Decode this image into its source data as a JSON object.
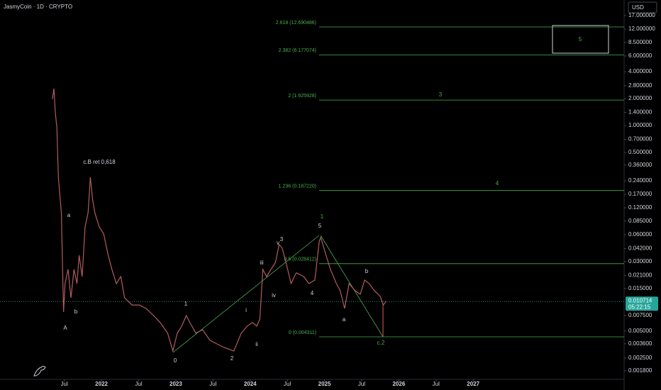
{
  "chart_data": {
    "type": "line",
    "title": "JasmyCoin · 1D · CRYPTO",
    "currency": "USD",
    "log_scale": true,
    "color": "#b35c5f",
    "xlim": [
      2020.635,
      2029.03
    ],
    "xticks": [
      {
        "value": 2021.5,
        "label": "Jul"
      },
      2022,
      {
        "value": 2022.5,
        "label": "Jul"
      },
      2023,
      {
        "value": 2023.5,
        "label": "Jul"
      },
      2024,
      {
        "value": 2024.5,
        "label": "Jul"
      },
      2025,
      {
        "value": 2025.5,
        "label": "Jul"
      },
      2026,
      {
        "value": 2026.5,
        "label": "Jul"
      },
      2027
    ],
    "ylim": [
      0.00144,
      25.4
    ],
    "yticks": [
      {
        "value": 17,
        "label": "17.000000"
      },
      {
        "value": 12,
        "label": "12.000000"
      },
      {
        "value": 8.5,
        "label": "8.500000"
      },
      {
        "value": 6,
        "label": "6.000000"
      },
      {
        "value": 4,
        "label": "4.000000"
      },
      {
        "value": 2.8,
        "label": "2.800000"
      },
      {
        "value": 2,
        "label": "2.000000"
      },
      {
        "value": 1.4,
        "label": "1.400000"
      },
      {
        "value": 1,
        "label": "1.000000"
      },
      {
        "value": 0.7,
        "label": "0.700000"
      },
      {
        "value": 0.5,
        "label": "0.500000"
      },
      {
        "value": 0.36,
        "label": "0.360000"
      },
      {
        "value": 0.24,
        "label": "0.240000"
      },
      {
        "value": 0.17,
        "label": "0.170000"
      },
      {
        "value": 0.12,
        "label": "0.120000"
      },
      {
        "value": 0.085,
        "label": "0.085000"
      },
      {
        "value": 0.06,
        "label": "0.060000"
      },
      {
        "value": 0.042,
        "label": "0.042000"
      },
      {
        "value": 0.03,
        "label": "0.030000"
      },
      {
        "value": 0.021,
        "label": "0.021000"
      },
      {
        "value": 0.015,
        "label": "0.015000"
      },
      {
        "value": 0.0075,
        "label": "0.007500"
      },
      {
        "value": 0.005,
        "label": "0.005000"
      },
      {
        "value": 0.0036,
        "label": "0.003600"
      },
      {
        "value": 0.0025,
        "label": "0.002500"
      },
      {
        "value": 0.0018,
        "label": "0.001800"
      }
    ],
    "x": [
      2021.34,
      2021.36,
      2021.38,
      2021.4,
      2021.42,
      2021.46,
      2021.49,
      2021.51,
      2021.55,
      2021.59,
      2021.63,
      2021.67,
      2021.7,
      2021.74,
      2021.78,
      2021.82,
      2021.85,
      2021.88,
      2021.91,
      2021.97,
      2022.03,
      2022.09,
      2022.14,
      2022.2,
      2022.26,
      2022.31,
      2022.41,
      2022.51,
      2022.6,
      2022.7,
      2022.79,
      2022.89,
      2022.96,
      2023.02,
      2023.08,
      2023.14,
      2023.19,
      2023.27,
      2023.36,
      2023.46,
      2023.55,
      2023.65,
      2023.78,
      2023.88,
      2023.96,
      2024.03,
      2024.09,
      2024.13,
      2024.17,
      2024.22,
      2024.28,
      2024.34,
      2024.39,
      2024.43,
      2024.47,
      2024.55,
      2024.62,
      2024.72,
      2024.79,
      2024.87,
      2024.93,
      2024.95,
      2025.02,
      2025.08,
      2025.16,
      2025.21,
      2025.27,
      2025.33,
      2025.41,
      2025.48,
      2025.54,
      2025.6,
      2025.67,
      2025.75,
      2025.79,
      2025.83
    ],
    "values": [
      1.97,
      2.59,
      1.37,
      0.947,
      0.264,
      0.106,
      0.0082,
      0.017,
      0.0245,
      0.0118,
      0.0245,
      0.017,
      0.0353,
      0.0204,
      0.0733,
      0.106,
      0.264,
      0.15,
      0.106,
      0.0733,
      0.0611,
      0.0353,
      0.0245,
      0.017,
      0.0204,
      0.0118,
      0.0098,
      0.0098,
      0.00896,
      0.00746,
      0.00622,
      0.00473,
      0.00299,
      0.00473,
      0.00568,
      0.00746,
      0.00622,
      0.00473,
      0.00518,
      0.00394,
      0.0036,
      0.00328,
      0.00299,
      0.00473,
      0.00568,
      0.00622,
      0.00568,
      0.00682,
      0.0245,
      0.0204,
      0.0245,
      0.0294,
      0.0465,
      0.0424,
      0.0322,
      0.017,
      0.0224,
      0.0204,
      0.017,
      0.0186,
      0.0509,
      0.0558,
      0.0353,
      0.0245,
      0.017,
      0.0142,
      0.00896,
      0.017,
      0.0142,
      0.0129,
      0.0186,
      0.017,
      0.0142,
      0.0122,
      0.0098,
      0.0108
    ],
    "current_price": 0.010714,
    "countdown": "05:22:15",
    "fib_levels": [
      {
        "label": "2.618 (12.690486)",
        "value": 12.690486
      },
      {
        "label": "2.382 (6.177074)",
        "value": 6.177074
      },
      {
        "label": "2 (1.925928)",
        "value": 1.925928
      },
      {
        "label": "1.236 (0.187220)",
        "value": 0.18722
      },
      {
        "label": "0.5 (0.028412)",
        "value": 0.028412
      },
      {
        "label": "0 (0.004311)",
        "value": 0.004311
      }
    ],
    "fib_color": "#4caf50",
    "annotations": [
      {
        "text": "A",
        "color": "#d1d4dc"
      },
      {
        "text": "a",
        "color": "#d1d4dc"
      },
      {
        "text": "b",
        "color": "#d1d4dc"
      },
      {
        "text": "c.B ret 0,618",
        "color": "#d1d4dc"
      },
      {
        "text": "1",
        "color": "#d1d4dc"
      },
      {
        "text": "0",
        "color": "#d1d4dc"
      },
      {
        "text": "2",
        "color": "#d1d4dc"
      },
      {
        "text": "i",
        "color": "#d1d4dc"
      },
      {
        "text": "ii",
        "color": "#d1d4dc"
      },
      {
        "text": "iii",
        "color": "#d1d4dc"
      },
      {
        "text": "iv",
        "color": "#d1d4dc"
      },
      {
        "text": "v",
        "color": "#d1d4dc"
      },
      {
        "text": "3",
        "color": "#d1d4dc"
      },
      {
        "text": "4",
        "color": "#d1d4dc"
      },
      {
        "text": "5",
        "color": "#d1d4dc"
      },
      {
        "text": "1",
        "color": "#4caf50"
      },
      {
        "text": "a",
        "color": "#d1d4dc"
      },
      {
        "text": "b",
        "color": "#d1d4dc"
      },
      {
        "text": "c.2",
        "color": "#4caf50"
      },
      {
        "text": "3",
        "color": "#4caf50"
      },
      {
        "text": "4",
        "color": "#4caf50"
      },
      {
        "text": "5",
        "color": "#4caf50"
      }
    ]
  }
}
